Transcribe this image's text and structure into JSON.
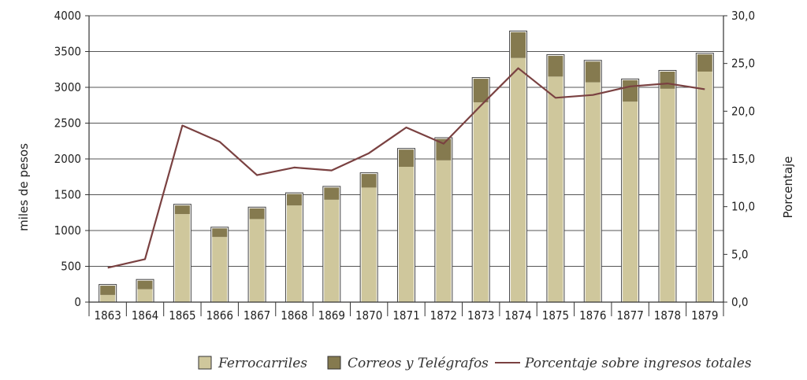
{
  "chart_data": {
    "type": "bar",
    "stacked": true,
    "secondary_axis_line": true,
    "categories": [
      "1863",
      "1864",
      "1865",
      "1866",
      "1867",
      "1868",
      "1869",
      "1870",
      "1871",
      "1872",
      "1873",
      "1874",
      "1875",
      "1876",
      "1877",
      "1878",
      "1879"
    ],
    "series": [
      {
        "name": "Ferrocarriles",
        "type": "bar",
        "axis": "left",
        "color": "#cfc79c",
        "values": [
          100,
          180,
          1230,
          910,
          1160,
          1350,
          1430,
          1600,
          1890,
          1980,
          2790,
          3410,
          3150,
          3070,
          2800,
          2980,
          3220
        ]
      },
      {
        "name": "Correos y Telégrafos",
        "type": "bar",
        "axis": "left",
        "color": "#857a4f",
        "values": [
          130,
          120,
          120,
          120,
          150,
          160,
          170,
          190,
          240,
          300,
          330,
          360,
          290,
          290,
          300,
          240,
          240
        ]
      },
      {
        "name": "Porcentaje sobre ingresos totales",
        "type": "line",
        "axis": "right",
        "color": "#7a4141",
        "values": [
          3.6,
          4.5,
          18.5,
          16.8,
          13.3,
          14.1,
          13.8,
          15.6,
          18.3,
          16.6,
          20.6,
          24.5,
          21.4,
          21.7,
          22.6,
          22.9,
          22.3
        ]
      }
    ],
    "ylabel": "miles de pesos",
    "y2label": "Porcentaje",
    "ylim": [
      0,
      4000
    ],
    "y2lim": [
      0,
      30
    ],
    "yticks": [
      "0",
      "500",
      "1000",
      "1500",
      "2000",
      "2500",
      "3000",
      "3500",
      "4000"
    ],
    "y2ticks": [
      "0,0",
      "5,0",
      "10,0",
      "15,0",
      "20,0",
      "25,0",
      "30,0"
    ],
    "grid": "horizontal",
    "legend_position": "bottom-right"
  }
}
